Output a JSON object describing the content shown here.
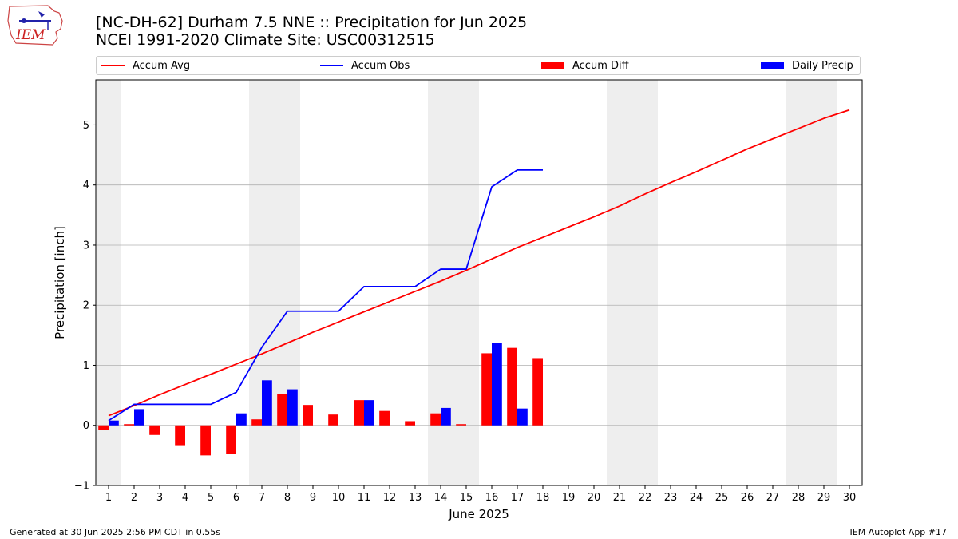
{
  "logo": {
    "text": "IEM",
    "text_color": "#cc2222",
    "outline_color": "#cc4444",
    "accent_color": "#2222aa"
  },
  "header": {
    "title_line1": "[NC-DH-62] Durham 7.5 NNE :: Precipitation for Jun 2025",
    "title_line2": "NCEI 1991-2020 Climate Site: USC00312515"
  },
  "legend": {
    "accum_avg": "Accum Avg",
    "accum_obs": "Accum Obs",
    "accum_diff": "Accum Diff",
    "daily_precip": "Daily Precip"
  },
  "footer": {
    "generated": "Generated at 30 Jun 2025 2:56 PM CDT in 0.55s",
    "app": "IEM Autoplot App #17"
  },
  "chart_data": {
    "type": "bar",
    "xlabel": "June 2025",
    "ylabel": "Precipitation [inch]",
    "ylim": [
      -1,
      5.75
    ],
    "xlim": [
      0.5,
      30.5
    ],
    "yticks": [
      -1,
      0,
      1,
      2,
      3,
      4,
      5
    ],
    "ytick_labels": [
      "−1",
      "0",
      "1",
      "2",
      "3",
      "4",
      "5"
    ],
    "days": [
      1,
      2,
      3,
      4,
      5,
      6,
      7,
      8,
      9,
      10,
      11,
      12,
      13,
      14,
      15,
      16,
      17,
      18,
      19,
      20,
      21,
      22,
      23,
      24,
      25,
      26,
      27,
      28,
      29,
      30
    ],
    "xtick_labels": [
      "1",
      "2",
      "3",
      "4",
      "5",
      "6",
      "7",
      "8",
      "9",
      "10",
      "11",
      "12",
      "13",
      "14",
      "15",
      "16",
      "17",
      "18",
      "19",
      "20",
      "21",
      "22",
      "23",
      "24",
      "25",
      "26",
      "27",
      "28",
      "29",
      "30"
    ],
    "weekend_shading": [
      [
        0.5,
        1.5
      ],
      [
        6.5,
        8.5
      ],
      [
        13.5,
        15.5
      ],
      [
        20.5,
        22.5
      ],
      [
        27.5,
        29.5
      ]
    ],
    "grid": "horizontal",
    "legend_placement": "top",
    "colors": {
      "avg": "#ff0000",
      "obs": "#0000ff",
      "diff": "#ff0000",
      "daily": "#0000ff",
      "shade": "#eeeeee",
      "grid": "#b0b0b0"
    },
    "series": [
      {
        "name": "Accum Avg",
        "kind": "line",
        "values": [
          0.16,
          0.33,
          0.51,
          0.68,
          0.85,
          1.02,
          1.19,
          1.37,
          1.55,
          1.72,
          1.89,
          2.06,
          2.23,
          2.4,
          2.58,
          2.77,
          2.96,
          3.13,
          3.3,
          3.47,
          3.65,
          3.85,
          4.04,
          4.22,
          4.41,
          4.6,
          4.77,
          4.94,
          5.11,
          5.25
        ]
      },
      {
        "name": "Accum Obs",
        "kind": "line",
        "values": [
          0.08,
          0.35,
          0.35,
          0.35,
          0.35,
          0.55,
          1.3,
          1.9,
          1.9,
          1.9,
          2.31,
          2.31,
          2.31,
          2.6,
          2.6,
          3.97,
          4.25,
          4.25
        ]
      },
      {
        "name": "Accum Diff",
        "kind": "bar",
        "values": [
          -0.08,
          0.02,
          -0.16,
          -0.33,
          -0.5,
          -0.47,
          0.1,
          0.52,
          0.34,
          0.18,
          0.42,
          0.24,
          0.07,
          0.2,
          0.02,
          1.2,
          1.29,
          1.12
        ]
      },
      {
        "name": "Daily Precip",
        "kind": "bar",
        "values": [
          0.08,
          0.27,
          0,
          0,
          0,
          0.2,
          0.75,
          0.6,
          0,
          0,
          0.42,
          0,
          0,
          0.29,
          0,
          1.37,
          0.28,
          0
        ]
      }
    ]
  }
}
